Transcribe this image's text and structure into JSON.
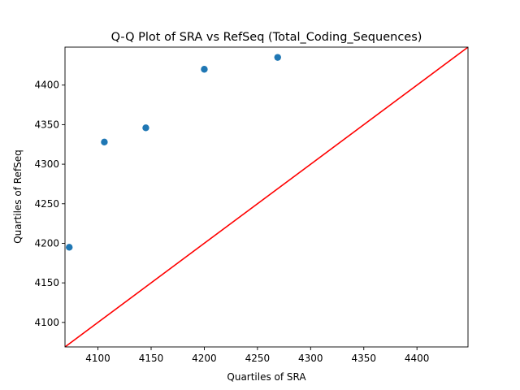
{
  "chart_data": {
    "type": "scatter",
    "title": "Q-Q Plot of SRA vs RefSeq (Total_Coding_Sequences)",
    "xlabel": "Quartiles of SRA",
    "ylabel": "Quartiles of RefSeq",
    "xlim": [
      4069,
      4448
    ],
    "ylim": [
      4069,
      4448
    ],
    "xticks": [
      4100,
      4150,
      4200,
      4250,
      4300,
      4350,
      4400
    ],
    "yticks": [
      4100,
      4150,
      4200,
      4250,
      4300,
      4350,
      4400
    ],
    "grid": false,
    "points": [
      {
        "x": 4073,
        "y": 4195
      },
      {
        "x": 4106,
        "y": 4328
      },
      {
        "x": 4145,
        "y": 4346
      },
      {
        "x": 4200,
        "y": 4420
      },
      {
        "x": 4269,
        "y": 4435
      }
    ],
    "reference_line": {
      "from": [
        4069,
        4069
      ],
      "to": [
        4448,
        4448
      ],
      "color": "#ff0000"
    },
    "colors": {
      "points": "#1f77b4",
      "line": "#ff0000"
    }
  }
}
